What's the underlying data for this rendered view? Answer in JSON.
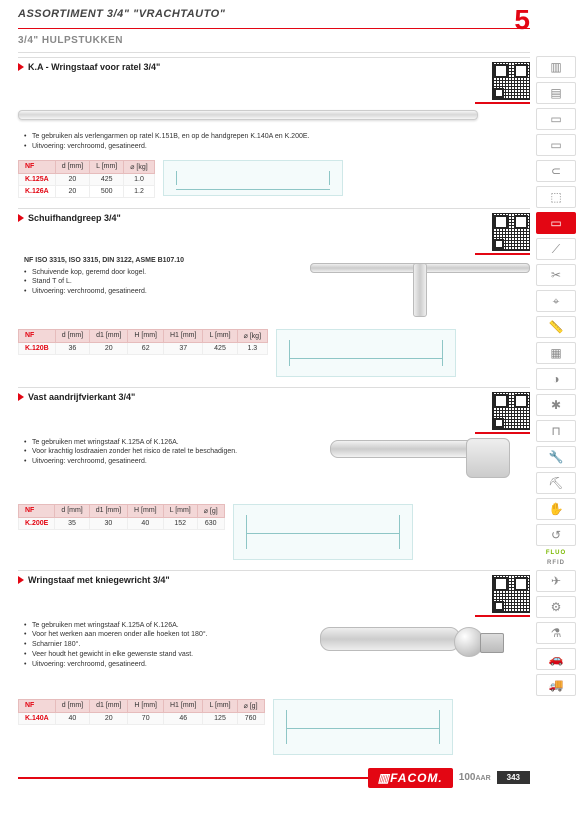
{
  "header": {
    "title": "ASSORTIMENT 3/4\" \"VRACHTAUTO\"",
    "pageNumber": "5"
  },
  "subtitle": "3/4\" HULPSTUKKEN",
  "products": [
    {
      "title": "K.A - Wringstaaf voor ratel 3/4\"",
      "bullets": [
        "Te gebruiken als verlengarmen op ratel K.151B, en op de handgrepen K.140A en K.200E.",
        "Uitvoering: verchroomd, gesatineerd."
      ],
      "table": {
        "columns": [
          "NF",
          "d [mm]",
          "L [mm]",
          "⌀ [kg]"
        ],
        "rows": [
          [
            "K.125A",
            "20",
            "425",
            "1.0"
          ],
          [
            "K.126A",
            "20",
            "500",
            "1.2"
          ]
        ]
      }
    },
    {
      "title": "Schuifhandgreep 3/4\"",
      "standards": "NF ISO 3315, ISO 3315, DIN 3122, ASME B107.10",
      "bullets": [
        "Schuivende kop, geremd door kogel.",
        "Stand T of L.",
        "Uitvoering: verchroomd, gesatineerd."
      ],
      "table": {
        "columns": [
          "NF",
          "d [mm]",
          "d1 [mm]",
          "H [mm]",
          "H1 [mm]",
          "L [mm]",
          "⌀ [kg]"
        ],
        "rows": [
          [
            "K.120B",
            "36",
            "20",
            "62",
            "37",
            "425",
            "1.3"
          ]
        ]
      }
    },
    {
      "title": "Vast aandrijfvierkant 3/4\"",
      "bullets": [
        "Te gebruiken met wringstaaf K.125A of K.126A.",
        "Voor krachtig losdraaien zonder het risico de ratel te beschadigen.",
        "Uitvoering: verchroomd, gesatineerd."
      ],
      "table": {
        "columns": [
          "NF",
          "d [mm]",
          "d1 [mm]",
          "H [mm]",
          "L [mm]",
          "⌀ [g]"
        ],
        "rows": [
          [
            "K.200E",
            "35",
            "30",
            "40",
            "152",
            "630"
          ]
        ]
      }
    },
    {
      "title": "Wringstaaf met kniegewricht 3/4\"",
      "bullets": [
        "Te gebruiken met wringstaaf K.125A of K.126A.",
        "Voor het werken aan moeren onder alle hoeken tot 180°.",
        "Scharnier 180°.",
        "Veer houdt het gewicht in elke gewenste stand vast.",
        "Uitvoering: verchroomd, gesatineerd."
      ],
      "table": {
        "columns": [
          "NF",
          "d [mm]",
          "d1 [mm]",
          "H [mm]",
          "H1 [mm]",
          "L [mm]",
          "⌀ [g]"
        ],
        "rows": [
          [
            "K.140A",
            "40",
            "20",
            "70",
            "46",
            "125",
            "760"
          ]
        ]
      }
    }
  ],
  "sidebar": [
    {
      "ic": "▥"
    },
    {
      "ic": "▤"
    },
    {
      "ic": "▭"
    },
    {
      "ic": "▭"
    },
    {
      "ic": "⊂"
    },
    {
      "ic": "⬚"
    },
    {
      "ic": "▭",
      "active": true
    },
    {
      "ic": "⟋"
    },
    {
      "ic": "✂"
    },
    {
      "ic": "⌖"
    },
    {
      "ic": "📏"
    },
    {
      "ic": "▦"
    },
    {
      "ic": "◑"
    },
    {
      "ic": "✱"
    },
    {
      "ic": "⊓"
    },
    {
      "ic": "🔧"
    },
    {
      "ic": "⛏"
    },
    {
      "ic": "✋"
    },
    {
      "ic": "↺"
    },
    {
      "label": "FLUO",
      "cls": "green"
    },
    {
      "label": "RFID"
    },
    {
      "ic": "✈"
    },
    {
      "ic": "⚙"
    },
    {
      "ic": "⚗"
    },
    {
      "ic": "🚗"
    },
    {
      "ic": "🚚"
    }
  ],
  "footer": {
    "brand": "▥FACOM.",
    "years": "100",
    "suffix": "AAR",
    "page": "343"
  }
}
